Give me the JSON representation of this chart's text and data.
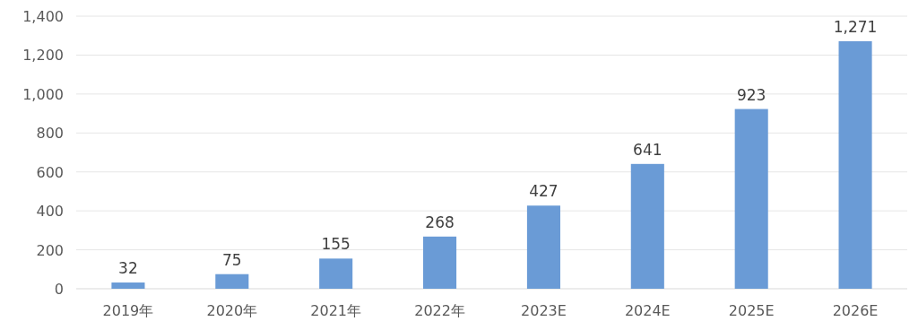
{
  "chart_data": {
    "type": "bar",
    "categories": [
      "2019年",
      "2020年",
      "2021年",
      "2022年",
      "2023E",
      "2024E",
      "2025E",
      "2026E"
    ],
    "values": [
      32,
      75,
      155,
      268,
      427,
      641,
      923,
      1271
    ],
    "value_labels": [
      "32",
      "75",
      "155",
      "268",
      "427",
      "641",
      "923",
      "1,271"
    ],
    "color": "#6a9bd6",
    "ylim": [
      0,
      1400
    ],
    "yticks": [
      0,
      200,
      400,
      600,
      800,
      {
        "value": 1000,
        "label": "1,000"
      },
      {
        "value": 1200,
        "label": "1,200"
      },
      {
        "value": 1400,
        "label": "1,400"
      }
    ],
    "grid": "y"
  }
}
